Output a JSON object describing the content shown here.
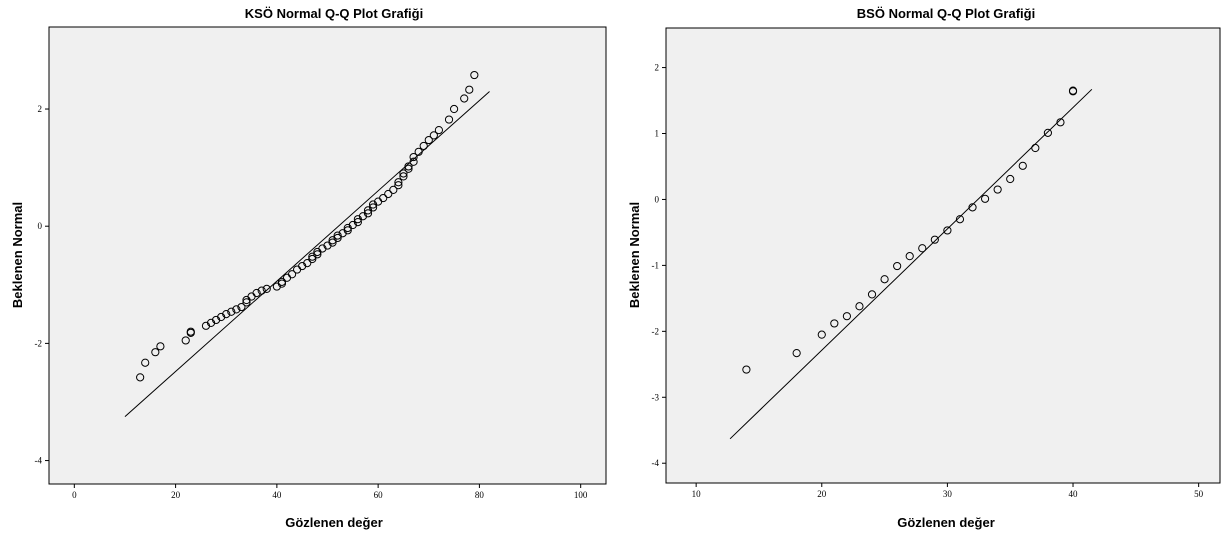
{
  "chart_data": [
    {
      "type": "scatter",
      "title": "KSÖ Normal Q-Q Plot Grafiği",
      "xlabel": "Gözlenen değer",
      "ylabel": "Beklenen Normal",
      "xlim": [
        -5,
        105
      ],
      "ylim": [
        -4.4,
        3.4
      ],
      "xticks": [
        0,
        20,
        40,
        60,
        80,
        100
      ],
      "yticks": [
        2,
        0,
        -2,
        -4
      ],
      "reference_line": [
        [
          10,
          -3.25
        ],
        [
          82,
          2.3
        ]
      ],
      "points": [
        [
          13,
          -2.58
        ],
        [
          14,
          -2.33
        ],
        [
          16,
          -2.15
        ],
        [
          17,
          -2.05
        ],
        [
          22,
          -1.95
        ],
        [
          23,
          -1.82
        ],
        [
          23,
          -1.8
        ],
        [
          26,
          -1.7
        ],
        [
          27,
          -1.65
        ],
        [
          28,
          -1.6
        ],
        [
          29,
          -1.55
        ],
        [
          30,
          -1.5
        ],
        [
          31,
          -1.46
        ],
        [
          32,
          -1.42
        ],
        [
          33,
          -1.38
        ],
        [
          34,
          -1.3
        ],
        [
          34,
          -1.26
        ],
        [
          35,
          -1.2
        ],
        [
          36,
          -1.14
        ],
        [
          37,
          -1.1
        ],
        [
          38,
          -1.07
        ],
        [
          40,
          -1.03
        ],
        [
          41,
          -0.98
        ],
        [
          41,
          -0.95
        ],
        [
          42,
          -0.88
        ],
        [
          43,
          -0.82
        ],
        [
          44,
          -0.74
        ],
        [
          45,
          -0.68
        ],
        [
          46,
          -0.63
        ],
        [
          47,
          -0.56
        ],
        [
          47,
          -0.52
        ],
        [
          48,
          -0.48
        ],
        [
          48,
          -0.44
        ],
        [
          49,
          -0.38
        ],
        [
          50,
          -0.33
        ],
        [
          51,
          -0.28
        ],
        [
          51,
          -0.24
        ],
        [
          52,
          -0.2
        ],
        [
          52,
          -0.16
        ],
        [
          53,
          -0.12
        ],
        [
          54,
          -0.07
        ],
        [
          54,
          -0.03
        ],
        [
          55,
          0.02
        ],
        [
          56,
          0.07
        ],
        [
          56,
          0.12
        ],
        [
          57,
          0.17
        ],
        [
          58,
          0.22
        ],
        [
          58,
          0.27
        ],
        [
          59,
          0.32
        ],
        [
          59,
          0.37
        ],
        [
          60,
          0.42
        ],
        [
          61,
          0.48
        ],
        [
          62,
          0.55
        ],
        [
          63,
          0.62
        ],
        [
          64,
          0.7
        ],
        [
          64,
          0.75
        ],
        [
          65,
          0.85
        ],
        [
          65,
          0.9
        ],
        [
          66,
          0.98
        ],
        [
          66,
          1.02
        ],
        [
          67,
          1.1
        ],
        [
          67,
          1.18
        ],
        [
          68,
          1.27
        ],
        [
          69,
          1.37
        ],
        [
          70,
          1.47
        ],
        [
          71,
          1.55
        ],
        [
          72,
          1.64
        ],
        [
          74,
          1.82
        ],
        [
          75,
          2.0
        ],
        [
          77,
          2.18
        ],
        [
          78,
          2.33
        ],
        [
          79,
          2.58
        ]
      ]
    },
    {
      "type": "scatter",
      "title": "BSÖ Normal Q-Q Plot Grafiği",
      "xlabel": "Gözlenen değer",
      "ylabel": "Beklenen Normal",
      "xlim": [
        7.6,
        51.7
      ],
      "ylim": [
        -4.3,
        2.6
      ],
      "xticks": [
        10,
        20,
        30,
        40,
        50
      ],
      "yticks": [
        2,
        1,
        0,
        -1,
        -2,
        -3,
        -4
      ],
      "reference_line": [
        [
          12.7,
          -3.63
        ],
        [
          41.5,
          1.67
        ]
      ],
      "points": [
        [
          14,
          -2.58
        ],
        [
          18,
          -2.33
        ],
        [
          20,
          -2.05
        ],
        [
          21,
          -1.88
        ],
        [
          22,
          -1.77
        ],
        [
          23,
          -1.62
        ],
        [
          24,
          -1.44
        ],
        [
          25,
          -1.21
        ],
        [
          26,
          -1.01
        ],
        [
          27,
          -0.86
        ],
        [
          28,
          -0.74
        ],
        [
          29,
          -0.61
        ],
        [
          30,
          -0.47
        ],
        [
          31,
          -0.3
        ],
        [
          32,
          -0.12
        ],
        [
          33,
          0.01
        ],
        [
          34,
          0.15
        ],
        [
          35,
          0.31
        ],
        [
          36,
          0.51
        ],
        [
          37,
          0.78
        ],
        [
          38,
          1.01
        ],
        [
          39,
          1.17
        ],
        [
          40,
          1.64
        ],
        [
          40,
          1.65
        ]
      ]
    }
  ]
}
